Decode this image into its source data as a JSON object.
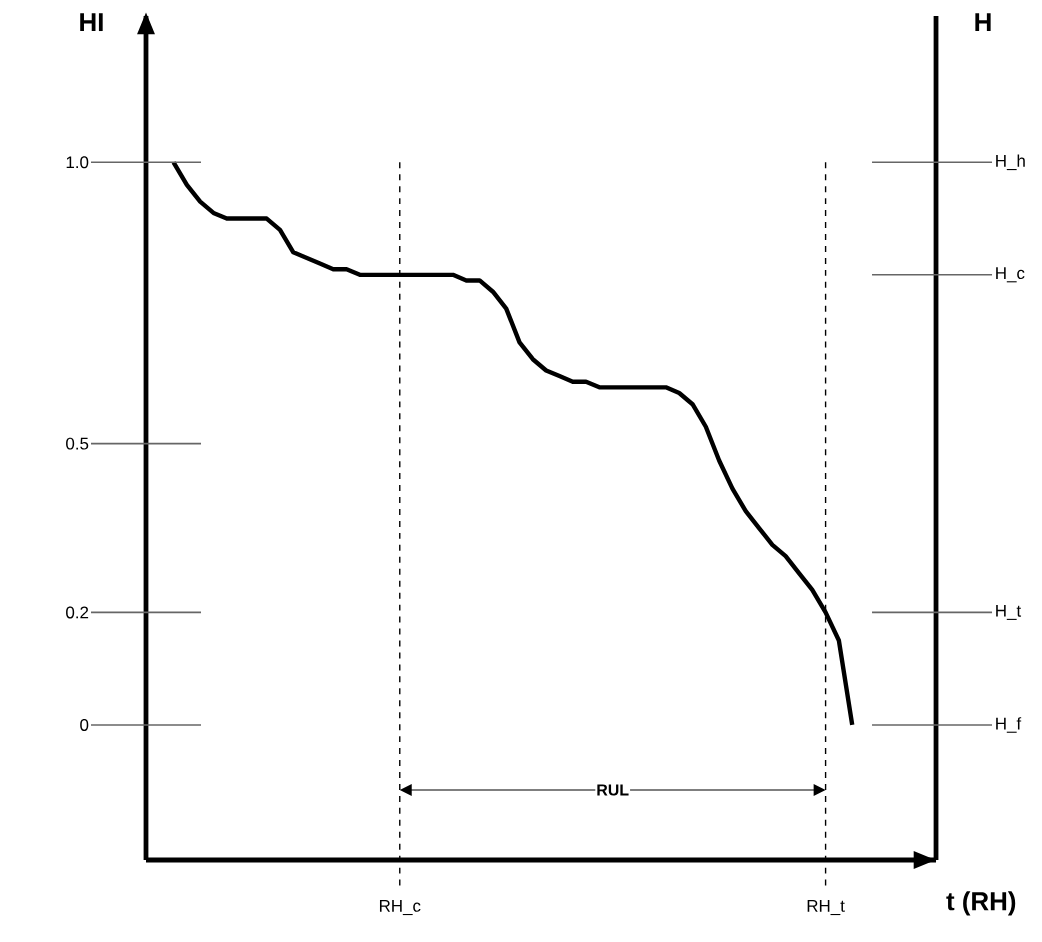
{
  "chart_data": {
    "type": "line",
    "xlabel": "t (RH)",
    "ylabel": "HI",
    "y2label": "H",
    "categories": [
      null,
      null,
      null,
      null,
      null,
      null,
      null,
      null,
      null,
      null,
      null,
      null,
      null,
      null,
      null,
      null,
      null,
      "RH_c",
      null,
      null,
      null,
      null,
      null,
      null,
      null,
      null,
      null,
      null,
      null,
      null,
      null,
      null,
      null,
      null,
      null,
      null,
      null,
      null,
      null,
      null,
      null,
      null,
      null,
      null,
      null,
      null,
      null,
      null,
      null,
      "RH_t",
      null,
      null
    ],
    "series": [
      {
        "color": "#000000",
        "values": [
          1.0,
          0.96,
          0.93,
          0.91,
          0.9,
          0.9,
          0.9,
          0.9,
          0.88,
          0.84,
          0.83,
          0.82,
          0.81,
          0.81,
          0.8,
          0.8,
          0.8,
          0.8,
          0.8,
          0.8,
          0.8,
          0.8,
          0.79,
          0.79,
          0.77,
          0.74,
          0.68,
          0.65,
          0.63,
          0.62,
          0.61,
          0.61,
          0.6,
          0.6,
          0.6,
          0.6,
          0.6,
          0.6,
          0.59,
          0.57,
          0.53,
          0.47,
          0.42,
          0.38,
          0.35,
          0.32,
          0.3,
          0.27,
          0.24,
          0.2,
          0.15,
          0
        ]
      }
    ],
    "ylim": [
      -0.24,
      1.26
    ],
    "yticks": [
      0,
      0.2,
      0.5,
      {
        "value": 1,
        "label": "1.0"
      }
    ],
    "ref_lines": [
      {
        "axis": "x",
        "value": "RH_c",
        "line_style": "dashed"
      },
      {
        "axis": "x",
        "value": "RH_t",
        "line_style": "dashed"
      },
      {
        "axis": "y",
        "value": 1,
        "label": "H_h"
      },
      {
        "axis": "y",
        "value": 0.8,
        "label": "H_c"
      },
      {
        "axis": "y",
        "value": 0.2,
        "label": "H_t"
      },
      {
        "axis": "y",
        "value": 0,
        "label": "H_f"
      }
    ],
    "annotations": [
      "RUL"
    ],
    "marker": "none",
    "grid": false
  }
}
